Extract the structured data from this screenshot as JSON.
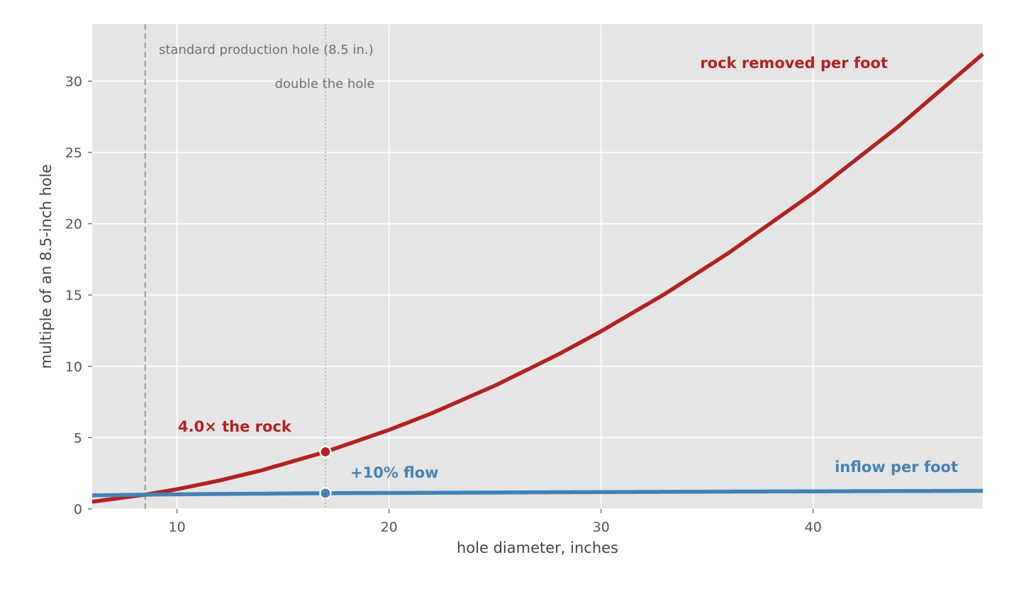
{
  "chart_data": {
    "type": "line",
    "title": "",
    "xlabel": "hole diameter, inches",
    "ylabel": "multiple of an 8.5-inch hole",
    "xlim": [
      6,
      48
    ],
    "ylim": [
      0,
      34
    ],
    "x_ticks": [
      10,
      20,
      30,
      40
    ],
    "y_ticks": [
      0,
      5,
      10,
      15,
      20,
      25,
      30
    ],
    "grid": true,
    "background": "#e5e5e5",
    "series": [
      {
        "key": "rock",
        "name": "rock removed per foot",
        "color": "#b22222",
        "x": [
          6,
          8.5,
          10,
          12,
          14,
          17,
          20,
          22,
          25,
          28,
          30,
          33,
          36,
          40,
          44,
          48
        ],
        "y": [
          0.5,
          1.0,
          1.38,
          1.99,
          2.71,
          4.0,
          5.54,
          6.7,
          8.65,
          10.85,
          12.46,
          15.07,
          17.94,
          22.15,
          26.8,
          31.9
        ]
      },
      {
        "key": "inflow",
        "name": "inflow per foot",
        "color": "#4682b4",
        "x": [
          6,
          8.5,
          10,
          12,
          14,
          17,
          20,
          25,
          30,
          35,
          40,
          44,
          48
        ],
        "y": [
          0.95,
          1.0,
          1.02,
          1.05,
          1.07,
          1.1,
          1.12,
          1.15,
          1.18,
          1.21,
          1.23,
          1.25,
          1.27
        ]
      }
    ],
    "reference_lines": [
      {
        "x": 8.5,
        "style": "dashed",
        "label": "standard production hole (8.5 in.)"
      },
      {
        "x": 17,
        "style": "dotted",
        "label": "double the hole"
      }
    ],
    "markers": [
      {
        "x": 17,
        "y": 4.0,
        "series": "rock",
        "label": "4.0× the rock"
      },
      {
        "x": 17,
        "y": 1.1,
        "series": "inflow",
        "label": "+10% flow"
      }
    ]
  }
}
